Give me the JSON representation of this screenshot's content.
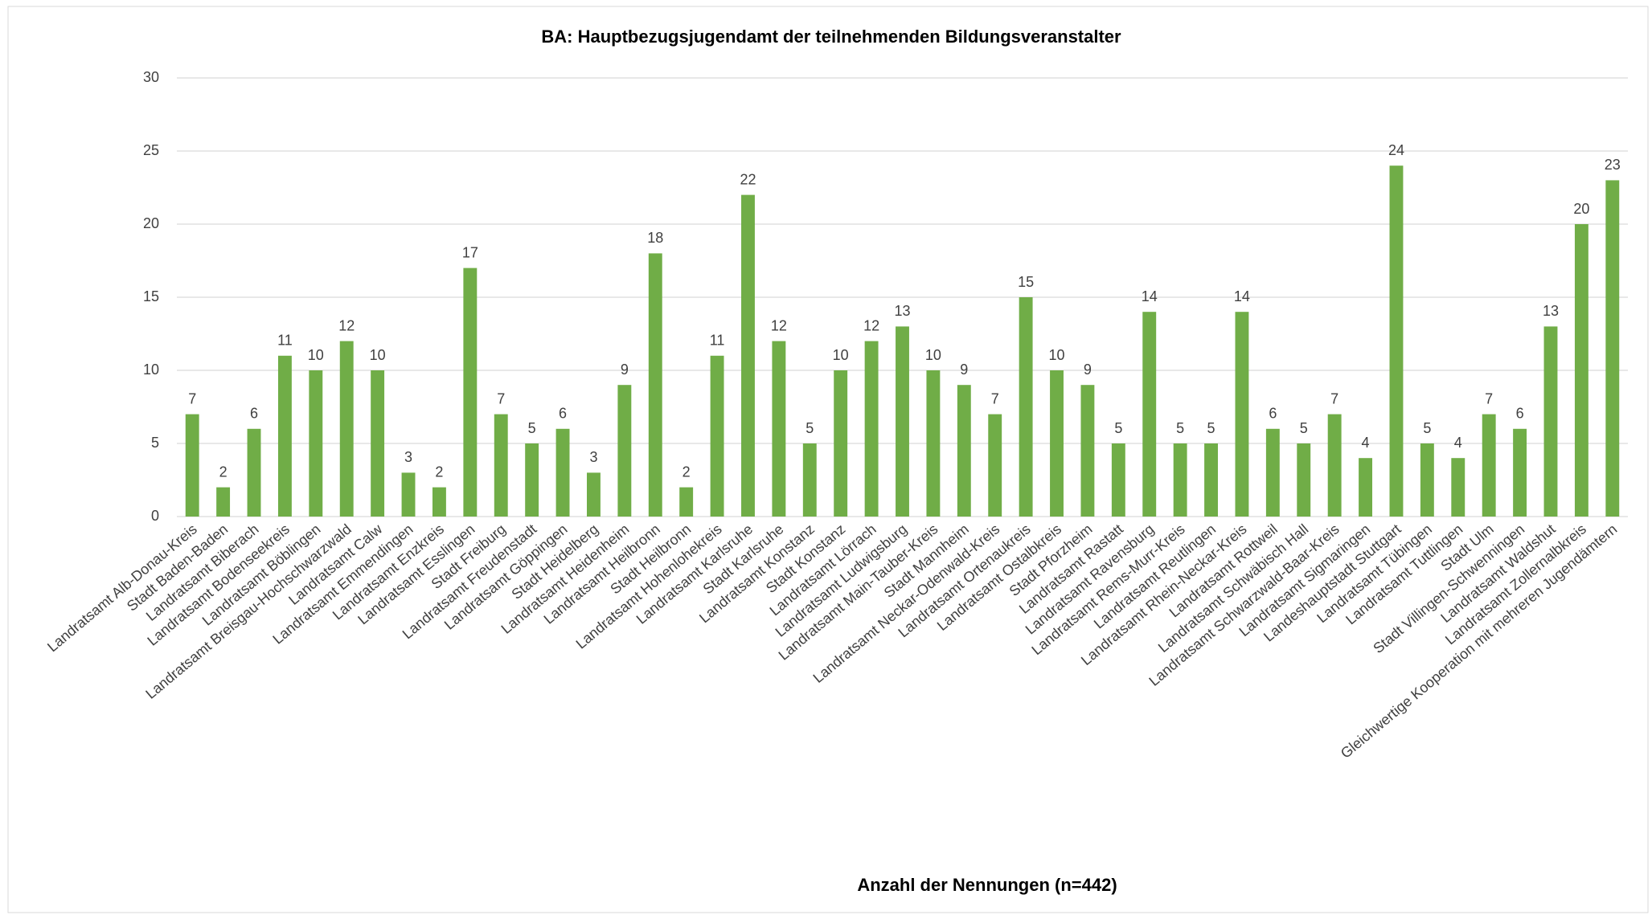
{
  "chart_data": {
    "type": "bar",
    "title": "BA: Hauptbezugsjugendamt der teilnehmenden Bildungsveranstalter",
    "x_label": "Anzahl der Nennungen (n=442)",
    "categories": [
      "Landratsamt Alb-Donau-Kreis",
      "Stadt Baden-Baden",
      "Landratsamt Biberach",
      "Landratsamt Bodenseekreis",
      "Landratsamt Böblingen",
      "Landratsamt Breisgau-Hochschwarzwald",
      "Landratsamt Calw",
      "Landratsamt Emmendingen",
      "Landratsamt Enzkreis",
      "Landratsamt Esslingen",
      "Stadt Freiburg",
      "Landratsamt Freudenstadt",
      "Landratsamt Göppingen",
      "Stadt Heidelberg",
      "Landratsamt Heidenheim",
      "Landratsamt Heilbronn",
      "Stadt Heilbronn",
      "Landratsamt Hohenlohekreis",
      "Landratsamt Karlsruhe",
      "Stadt Karlsruhe",
      "Landratsamt Konstanz",
      "Stadt Konstanz",
      "Landratsamt Lörrach",
      "Landratsamt Ludwigsburg",
      "Landratsamt Main-Tauber-Kreis",
      "Stadt Mannheim",
      "Landratsamt Neckar-Odenwald-Kreis",
      "Landratsamt Ortenaukreis",
      "Landratsamt Ostalbkreis",
      "Stadt Pforzheim",
      "Landratsamt Rastatt",
      "Landratsamt Ravensburg",
      "Landratsamt Rems-Murr-Kreis",
      "Landratsamt Reutlingen",
      "Landratsamt Rhein-Neckar-Kreis",
      "Landratsamt Rottweil",
      "Landratsamt Schwäbisch Hall",
      "Landratsamt Schwarzwald-Baar-Kreis",
      "Landratsamt Sigmaringen",
      "Landeshauptstadt Stuttgart",
      "Landratsamt Tübingen",
      "Landratsamt Tuttlingen",
      "Stadt Ulm",
      "Stadt Villingen-Schwenningen",
      "Landratsamt Waldshut",
      "Landratsamt Zollernalbkreis",
      "Gleichwertige Kooperation mit mehreren Jugendämtern"
    ],
    "values": [
      7,
      2,
      6,
      11,
      10,
      12,
      10,
      3,
      2,
      17,
      7,
      5,
      6,
      3,
      9,
      18,
      2,
      11,
      22,
      12,
      5,
      10,
      12,
      13,
      10,
      9,
      7,
      15,
      10,
      9,
      5,
      14,
      5,
      5,
      14,
      6,
      5,
      7,
      4,
      24,
      5,
      4,
      7,
      6,
      13,
      20,
      23
    ],
    "color": "#70ad47",
    "ylim": [
      0,
      30
    ],
    "yticks": [
      0,
      5,
      10,
      15,
      20,
      25,
      30
    ],
    "grid": true
  }
}
